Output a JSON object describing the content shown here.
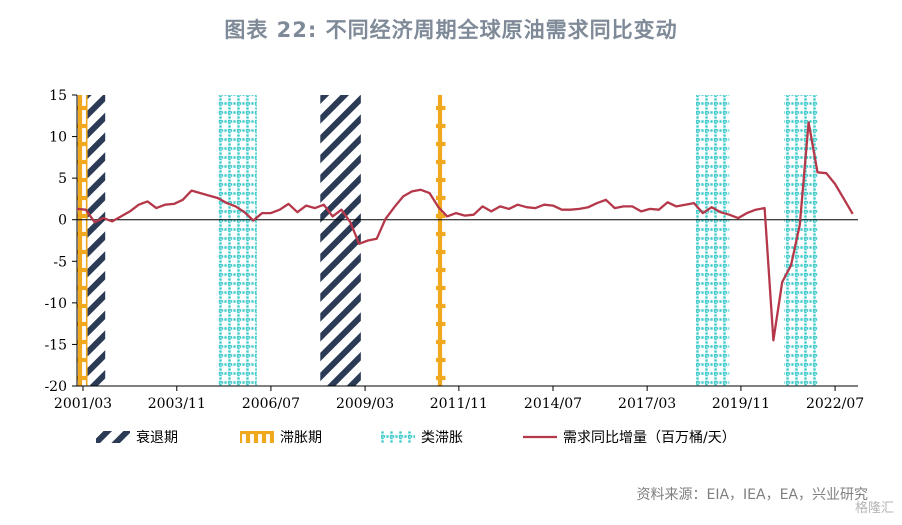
{
  "title": "图表 22: 不同经济周期全球原油需求同比变动",
  "source": "资料来源：EIA，IEA，EA，兴业研究",
  "watermark": "格隆汇",
  "colors": {
    "line": "#b5384a",
    "recession": "#2b3a55",
    "stagflation": "#f0a81e",
    "quasi_stagflation": "#3cc9c9"
  },
  "chart_data": {
    "type": "line",
    "title": "图表 22: 不同经济周期全球原油需求同比变动",
    "ylim": [
      -20,
      15
    ],
    "yticks": [
      15,
      10,
      5,
      0,
      -5,
      -10,
      -15,
      -20
    ],
    "xlim": [
      2001.0,
      2023.15
    ],
    "xticks": [
      {
        "label": "2001/03",
        "x": 2001.17
      },
      {
        "label": "2003/11",
        "x": 2003.83
      },
      {
        "label": "2006/07",
        "x": 2006.5
      },
      {
        "label": "2009/03",
        "x": 2009.17
      },
      {
        "label": "2011/11",
        "x": 2011.83
      },
      {
        "label": "2014/07",
        "x": 2014.5
      },
      {
        "label": "2017/03",
        "x": 2017.17
      },
      {
        "label": "2019/11",
        "x": 2019.83
      },
      {
        "label": "2022/07",
        "x": 2022.5
      }
    ],
    "legend": [
      {
        "key": "recession",
        "label": "衰退期"
      },
      {
        "key": "stagflation",
        "label": "滞胀期"
      },
      {
        "key": "quasi_stagflation",
        "label": "类滞胀"
      },
      {
        "key": "line",
        "label": "需求同比增量（百万桶/天）"
      }
    ],
    "periods": [
      {
        "type": "stagflation",
        "start": 2001.0,
        "end": 2001.3
      },
      {
        "type": "recession",
        "start": 2001.3,
        "end": 2001.8
      },
      {
        "type": "quasi_stagflation",
        "start": 2005.0,
        "end": 2006.1
      },
      {
        "type": "recession",
        "start": 2007.9,
        "end": 2009.05
      },
      {
        "type": "stagflation",
        "start": 2011.18,
        "end": 2011.45
      },
      {
        "type": "quasi_stagflation",
        "start": 2018.55,
        "end": 2019.5
      },
      {
        "type": "quasi_stagflation",
        "start": 2021.05,
        "end": 2022.0
      }
    ],
    "series": [
      {
        "x": [
          2001.0,
          2001.25,
          2001.5,
          2001.75,
          2002.0,
          2002.25,
          2002.5,
          2002.75,
          2003.0,
          2003.25,
          2003.5,
          2003.75,
          2004.0,
          2004.25,
          2004.5,
          2004.75,
          2005.0,
          2005.25,
          2005.5,
          2005.75,
          2006.0,
          2006.25,
          2006.5,
          2006.75,
          2007.0,
          2007.25,
          2007.5,
          2007.75,
          2008.0,
          2008.25,
          2008.5,
          2008.75,
          2009.0,
          2009.25,
          2009.5,
          2009.75,
          2010.0,
          2010.25,
          2010.5,
          2010.75,
          2011.0,
          2011.25,
          2011.5,
          2011.75,
          2012.0,
          2012.25,
          2012.5,
          2012.75,
          2013.0,
          2013.25,
          2013.5,
          2013.75,
          2014.0,
          2014.25,
          2014.5,
          2014.75,
          2015.0,
          2015.25,
          2015.5,
          2015.75,
          2016.0,
          2016.25,
          2016.5,
          2016.75,
          2017.0,
          2017.25,
          2017.5,
          2017.75,
          2018.0,
          2018.25,
          2018.5,
          2018.75,
          2019.0,
          2019.25,
          2019.5,
          2019.75,
          2020.0,
          2020.25,
          2020.5,
          2020.75,
          2021.0,
          2021.25,
          2021.5,
          2021.75,
          2022.0,
          2022.25,
          2022.5,
          2022.75,
          2023.0
        ],
        "values": [
          1.3,
          1.2,
          -0.3,
          0.2,
          -0.2,
          0.4,
          1.0,
          1.8,
          2.2,
          1.4,
          1.8,
          1.9,
          2.4,
          3.5,
          3.2,
          2.9,
          2.6,
          2.0,
          1.6,
          0.9,
          -0.1,
          0.8,
          0.8,
          1.2,
          1.9,
          0.9,
          1.7,
          1.4,
          1.8,
          0.4,
          1.2,
          -0.3,
          -2.9,
          -2.5,
          -2.3,
          0.1,
          1.5,
          2.8,
          3.4,
          3.6,
          3.2,
          1.5,
          0.4,
          0.8,
          0.5,
          0.6,
          1.6,
          1.0,
          1.6,
          1.3,
          1.8,
          1.5,
          1.4,
          1.8,
          1.7,
          1.2,
          1.2,
          1.3,
          1.5,
          2.0,
          2.4,
          1.4,
          1.6,
          1.6,
          1.0,
          1.3,
          1.2,
          2.1,
          1.6,
          1.8,
          2.0,
          0.8,
          1.5,
          0.9,
          0.6,
          0.2,
          0.8,
          1.2,
          1.4,
          -14.5,
          -7.5,
          -5.5,
          -0.6,
          11.7,
          5.7,
          5.6,
          4.3,
          2.5,
          0.7
        ]
      }
    ]
  }
}
